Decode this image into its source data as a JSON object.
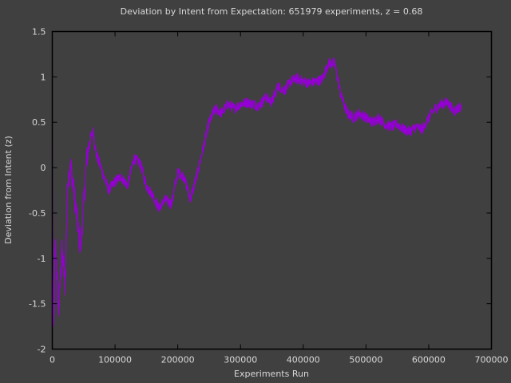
{
  "chart_data": {
    "type": "line",
    "title": "Deviation by Intent from Expectation: 651979 experiments, z = 0.68",
    "xlabel": "Experiments Run",
    "ylabel": "Deviation from Intent (z)",
    "xlim": [
      0,
      700000
    ],
    "ylim": [
      -2,
      1.5
    ],
    "xticks": [
      0,
      100000,
      200000,
      300000,
      400000,
      500000,
      600000,
      700000
    ],
    "xtick_labels": [
      "0",
      "100000",
      "200000",
      "300000",
      "400000",
      "500000",
      "600000",
      "700000"
    ],
    "yticks": [
      1.5,
      1,
      0.5,
      0,
      -0.5,
      -1,
      -1.5,
      -2
    ],
    "ytick_labels": [
      "1.5",
      "1",
      "0.5",
      "0",
      "-0.5",
      "-1",
      "-1.5",
      "-2"
    ],
    "grid": false,
    "legend": "none",
    "series": [
      {
        "name": "Deviation from Intent (z)",
        "color": "#9400d3",
        "x": [
          0,
          1000,
          2000,
          5000,
          8000,
          10000,
          15000,
          18000,
          20000,
          25000,
          30000,
          35000,
          40000,
          45000,
          50000,
          55000,
          60000,
          65000,
          70000,
          80000,
          90000,
          100000,
          110000,
          120000,
          130000,
          140000,
          150000,
          160000,
          170000,
          180000,
          190000,
          200000,
          210000,
          220000,
          230000,
          240000,
          250000,
          260000,
          270000,
          280000,
          290000,
          300000,
          310000,
          320000,
          330000,
          340000,
          350000,
          360000,
          370000,
          380000,
          390000,
          400000,
          410000,
          420000,
          430000,
          440000,
          450000,
          460000,
          470000,
          480000,
          490000,
          500000,
          510000,
          520000,
          530000,
          540000,
          550000,
          560000,
          570000,
          580000,
          590000,
          600000,
          610000,
          620000,
          630000,
          640000,
          651979
        ],
        "y": [
          0.2,
          -1.2,
          -1.8,
          -0.8,
          -1.3,
          -1.6,
          -0.9,
          -1.1,
          -1.3,
          -0.1,
          0.0,
          -0.3,
          -0.6,
          -0.9,
          -0.4,
          0.1,
          0.3,
          0.4,
          0.15,
          -0.05,
          -0.25,
          -0.15,
          -0.1,
          -0.2,
          0.1,
          0.05,
          -0.2,
          -0.3,
          -0.45,
          -0.35,
          -0.4,
          -0.05,
          -0.1,
          -0.35,
          -0.1,
          0.2,
          0.5,
          0.65,
          0.6,
          0.7,
          0.65,
          0.7,
          0.72,
          0.7,
          0.68,
          0.78,
          0.72,
          0.9,
          0.85,
          0.95,
          0.98,
          0.95,
          0.93,
          0.95,
          0.97,
          1.15,
          1.15,
          0.8,
          0.6,
          0.55,
          0.6,
          0.55,
          0.5,
          0.55,
          0.48,
          0.45,
          0.48,
          0.42,
          0.4,
          0.45,
          0.42,
          0.55,
          0.65,
          0.7,
          0.72,
          0.62,
          0.68
        ]
      }
    ]
  },
  "colors": {
    "background": "#404040",
    "axis": "#000000",
    "text": "#d8d8d8",
    "line": "#9400d3"
  }
}
